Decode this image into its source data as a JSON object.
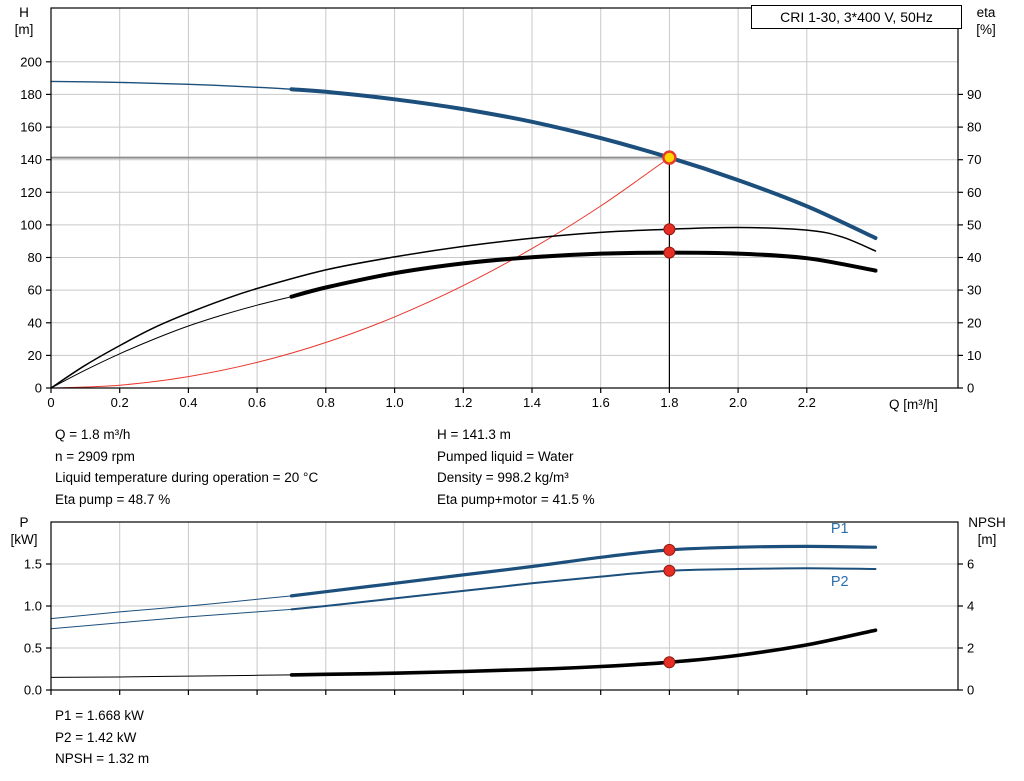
{
  "title_box": "CRI 1-30, 3*400 V, 50Hz",
  "top_chart": {
    "y_left_title": [
      "H",
      "[m]"
    ],
    "y_right_title": [
      "eta",
      "[%]"
    ],
    "x_title": "Q [m³/h]"
  },
  "bottom_chart": {
    "y_left_title": [
      "P",
      "[kW]"
    ],
    "y_right_title": [
      "NPSH",
      "[m]"
    ]
  },
  "operating_info": {
    "left": [
      "Q = 1.8 m³/h",
      "n = 2909 rpm",
      "Liquid temperature during operation = 20 °C",
      "Eta pump = 48.7 %"
    ],
    "right": [
      "H = 141.3 m",
      "Pumped liquid = Water",
      "Density = 998.2 kg/m³",
      "Eta pump+motor = 41.5 %"
    ]
  },
  "results_info": [
    "P1 = 1.668 kW",
    "P2 = 1.42 kW",
    "NPSH = 1.32 m"
  ],
  "colors": {
    "curve_blue": "#1c4f7c",
    "label_blue": "#2c6fad",
    "curve_black": "#000000",
    "system_red": "#e8372c",
    "duty_yellow": "#ffd500",
    "marker_red": "#e62e25",
    "grid_gray": "#c9c9c9",
    "ref_gray": "#8f8f8f"
  },
  "chart_data": [
    {
      "id": "chart-top",
      "type": "line",
      "title": "CRI 1-30, 3*400 V, 50Hz",
      "xlabel": "Q [m³/h]",
      "ylabel_left": "H [m]",
      "ylabel_right": "eta [%]",
      "x_range": [
        0,
        2.64
      ],
      "left_range": [
        0,
        233
      ],
      "right_range": [
        0,
        116.5
      ],
      "x_ticks": [
        0,
        0.2,
        0.4,
        0.6,
        0.8,
        1.0,
        1.2,
        1.4,
        1.6,
        1.8,
        2.0,
        2.2
      ],
      "x_tick_labels": [
        "0",
        "0.2",
        "0.4",
        "0.6",
        "0.8",
        "1.0",
        "1.2",
        "1.4",
        "1.6",
        "1.8",
        "2.0",
        "2.2"
      ],
      "left_ticks": [
        0,
        20,
        40,
        60,
        80,
        100,
        120,
        140,
        160,
        180,
        200
      ],
      "left_tick_labels": [
        "0",
        "20",
        "40",
        "60",
        "80",
        "100",
        "120",
        "140",
        "160",
        "180",
        "200"
      ],
      "right_ticks": [
        0,
        10,
        20,
        30,
        40,
        50,
        60,
        70,
        80,
        90
      ],
      "right_tick_labels": [
        "0",
        "10",
        "20",
        "30",
        "40",
        "50",
        "60",
        "70",
        "80",
        "90"
      ],
      "ref_lines": [
        {
          "name": "duty-head-line",
          "type": "h",
          "axis": "left",
          "y": 141.3,
          "x1": 0,
          "x2": 1.8,
          "color": "#8f8f8f",
          "width": 2
        },
        {
          "name": "duty-flow-line",
          "type": "v",
          "axis": "left",
          "x": 1.8,
          "y1": 0,
          "y2": 141.3,
          "color": "#000000",
          "width": 1.2
        }
      ],
      "series": [
        {
          "name": "head-curve-thin",
          "axis": "left",
          "color": "#1c4f7c",
          "width": 1.4,
          "points": [
            [
              0,
              188
            ],
            [
              0.2,
              187.4
            ],
            [
              0.4,
              186.2
            ],
            [
              0.6,
              184.4
            ],
            [
              0.7,
              183.2
            ]
          ]
        },
        {
          "name": "head-curve",
          "axis": "left",
          "color": "#1c4f7c",
          "width": 4,
          "points": [
            [
              0.7,
              183.2
            ],
            [
              0.8,
              181.6
            ],
            [
              1.0,
              177
            ],
            [
              1.2,
              171
            ],
            [
              1.4,
              163.2
            ],
            [
              1.6,
              153.2
            ],
            [
              1.8,
              141.3
            ],
            [
              2.0,
              127.5
            ],
            [
              2.2,
              111.5
            ],
            [
              2.4,
              92
            ]
          ]
        },
        {
          "name": "system-curve",
          "axis": "left",
          "color": "#e8372c",
          "width": 1,
          "points": [
            [
              0,
              0
            ],
            [
              0.2,
              1.7
            ],
            [
              0.4,
              7
            ],
            [
              0.6,
              15.7
            ],
            [
              0.8,
              27.9
            ],
            [
              1.0,
              43.6
            ],
            [
              1.2,
              62.8
            ],
            [
              1.4,
              85.5
            ],
            [
              1.6,
              111.6
            ],
            [
              1.8,
              141.3
            ]
          ]
        },
        {
          "name": "eta-pump-curve",
          "axis": "right",
          "color": "#000000",
          "width": 1.5,
          "points": [
            [
              0,
              0
            ],
            [
              0.1,
              7
            ],
            [
              0.2,
              13
            ],
            [
              0.3,
              18.5
            ],
            [
              0.4,
              23
            ],
            [
              0.5,
              27
            ],
            [
              0.6,
              30.5
            ],
            [
              0.8,
              36.2
            ],
            [
              1.0,
              40.2
            ],
            [
              1.2,
              43.4
            ],
            [
              1.4,
              45.9
            ],
            [
              1.6,
              47.7
            ],
            [
              1.8,
              48.7
            ],
            [
              2.0,
              49.2
            ],
            [
              2.2,
              48.4
            ],
            [
              2.3,
              46.4
            ],
            [
              2.4,
              42
            ]
          ]
        },
        {
          "name": "eta-pump-motor-curve-thin",
          "axis": "right",
          "color": "#000000",
          "width": 1,
          "points": [
            [
              0,
              0
            ],
            [
              0.1,
              5.5
            ],
            [
              0.2,
              10.5
            ],
            [
              0.3,
              15
            ],
            [
              0.4,
              19
            ],
            [
              0.5,
              22.4
            ],
            [
              0.6,
              25.4
            ],
            [
              0.7,
              28
            ]
          ]
        },
        {
          "name": "eta-pump-motor-curve",
          "axis": "right",
          "color": "#000000",
          "width": 4,
          "points": [
            [
              0.7,
              28
            ],
            [
              0.8,
              30.8
            ],
            [
              1.0,
              35.2
            ],
            [
              1.2,
              38.2
            ],
            [
              1.4,
              40.1
            ],
            [
              1.6,
              41.2
            ],
            [
              1.8,
              41.5
            ],
            [
              2.0,
              41.2
            ],
            [
              2.2,
              39.8
            ],
            [
              2.4,
              36
            ]
          ]
        }
      ],
      "markers": [
        {
          "name": "duty-point",
          "x": 1.8,
          "y": 141.3,
          "axis": "left",
          "r": 6,
          "fill": "#ffd500",
          "stroke": "#e8372c",
          "stroke_width": 2.4
        },
        {
          "name": "eta-pump-point",
          "x": 1.8,
          "y": 48.7,
          "axis": "right",
          "r": 5.5,
          "fill": "#e62e25",
          "stroke": "#8f1a12",
          "stroke_width": 1
        },
        {
          "name": "eta-pump-motor-point",
          "x": 1.8,
          "y": 41.5,
          "axis": "right",
          "r": 5.5,
          "fill": "#e62e25",
          "stroke": "#8f1a12",
          "stroke_width": 1
        }
      ],
      "labels": []
    },
    {
      "id": "chart-bottom",
      "type": "line",
      "title": "",
      "xlabel": "Q [m³/h]",
      "ylabel_left": "P [kW]",
      "ylabel_right": "NPSH [m]",
      "x_range": [
        0,
        2.64
      ],
      "left_range": [
        0,
        2
      ],
      "right_range": [
        0,
        8
      ],
      "x_ticks": [
        0,
        0.2,
        0.4,
        0.6,
        0.8,
        1.0,
        1.2,
        1.4,
        1.6,
        1.8,
        2.0,
        2.2
      ],
      "left_ticks": [
        0,
        0.5,
        1,
        1.5
      ],
      "left_tick_labels": [
        "0.0",
        "0.5",
        "1.0",
        "1.5"
      ],
      "right_ticks": [
        0,
        2,
        4,
        6
      ],
      "right_tick_labels": [
        "0",
        "2",
        "4",
        "6"
      ],
      "ref_lines": [],
      "series": [
        {
          "name": "p1-curve-thin",
          "axis": "left",
          "color": "#1c4f7c",
          "width": 1,
          "points": [
            [
              0,
              0.85
            ],
            [
              0.2,
              0.93
            ],
            [
              0.4,
              1.0
            ],
            [
              0.6,
              1.08
            ],
            [
              0.7,
              1.12
            ]
          ]
        },
        {
          "name": "p1-curve",
          "axis": "left",
          "color": "#1c4f7c",
          "width": 3.2,
          "points": [
            [
              0.7,
              1.12
            ],
            [
              0.8,
              1.17
            ],
            [
              1.0,
              1.27
            ],
            [
              1.2,
              1.37
            ],
            [
              1.4,
              1.47
            ],
            [
              1.6,
              1.58
            ],
            [
              1.8,
              1.668
            ],
            [
              2.0,
              1.7
            ],
            [
              2.2,
              1.71
            ],
            [
              2.4,
              1.7
            ]
          ]
        },
        {
          "name": "p2-curve-thin",
          "axis": "left",
          "color": "#1c4f7c",
          "width": 1,
          "points": [
            [
              0,
              0.73
            ],
            [
              0.2,
              0.8
            ],
            [
              0.4,
              0.87
            ],
            [
              0.6,
              0.93
            ],
            [
              0.7,
              0.96
            ]
          ]
        },
        {
          "name": "p2-curve",
          "axis": "left",
          "color": "#1c4f7c",
          "width": 2,
          "points": [
            [
              0.7,
              0.96
            ],
            [
              0.8,
              1.0
            ],
            [
              1.0,
              1.09
            ],
            [
              1.2,
              1.18
            ],
            [
              1.4,
              1.27
            ],
            [
              1.6,
              1.35
            ],
            [
              1.8,
              1.42
            ],
            [
              2.0,
              1.44
            ],
            [
              2.2,
              1.45
            ],
            [
              2.4,
              1.44
            ]
          ]
        },
        {
          "name": "npsh-curve-thin",
          "axis": "right",
          "color": "#000000",
          "width": 1,
          "points": [
            [
              0,
              0.6
            ],
            [
              0.2,
              0.62
            ],
            [
              0.4,
              0.66
            ],
            [
              0.6,
              0.7
            ],
            [
              0.7,
              0.72
            ]
          ]
        },
        {
          "name": "npsh-curve",
          "axis": "right",
          "color": "#000000",
          "width": 3.6,
          "points": [
            [
              0.7,
              0.72
            ],
            [
              0.8,
              0.75
            ],
            [
              1.0,
              0.8
            ],
            [
              1.2,
              0.88
            ],
            [
              1.4,
              0.98
            ],
            [
              1.6,
              1.12
            ],
            [
              1.8,
              1.32
            ],
            [
              2.0,
              1.65
            ],
            [
              2.2,
              2.15
            ],
            [
              2.4,
              2.85
            ]
          ]
        }
      ],
      "markers": [
        {
          "name": "p1-point",
          "x": 1.8,
          "y": 1.668,
          "axis": "left",
          "r": 5.5,
          "fill": "#e62e25",
          "stroke": "#8f1a12",
          "stroke_width": 1
        },
        {
          "name": "p2-point",
          "x": 1.8,
          "y": 1.42,
          "axis": "left",
          "r": 5.5,
          "fill": "#e62e25",
          "stroke": "#8f1a12",
          "stroke_width": 1
        },
        {
          "name": "npsh-point",
          "x": 1.8,
          "y": 1.32,
          "axis": "right",
          "r": 5.5,
          "fill": "#e62e25",
          "stroke": "#8f1a12",
          "stroke_width": 1
        }
      ],
      "labels": [
        {
          "name": "p1-label",
          "text": "P1",
          "x": 2.27,
          "y": 1.87,
          "axis": "left",
          "color": "#2c6fad"
        },
        {
          "name": "p2-label",
          "text": "P2",
          "x": 2.27,
          "y": 1.24,
          "axis": "left",
          "color": "#2c6fad"
        }
      ]
    }
  ]
}
